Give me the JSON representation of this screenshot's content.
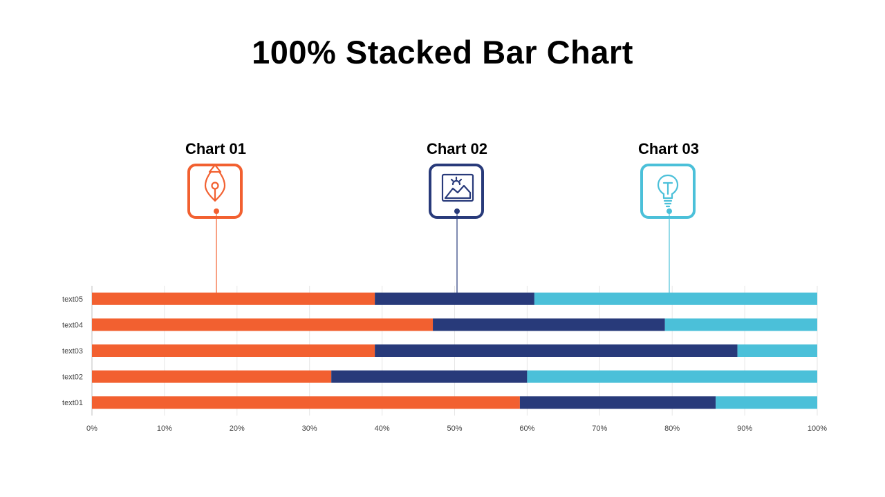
{
  "title": "100% Stacked Bar Chart",
  "callouts": [
    {
      "label": "Chart 01",
      "icon": "pen-nib-icon",
      "color": "#f26030"
    },
    {
      "label": "Chart 02",
      "icon": "landscape-image-icon",
      "color": "#283a7a"
    },
    {
      "label": "Chart 03",
      "icon": "lightbulb-icon",
      "color": "#4bc0d9"
    }
  ],
  "chart_data": {
    "type": "bar",
    "orientation": "horizontal",
    "stacked": "percent",
    "categories": [
      "text01",
      "text02",
      "text03",
      "text04",
      "text05"
    ],
    "series": [
      {
        "name": "Chart 01",
        "color": "#f26030",
        "values": [
          59,
          33,
          39,
          47,
          39
        ]
      },
      {
        "name": "Chart 02",
        "color": "#283a7a",
        "values": [
          27,
          27,
          50,
          32,
          22
        ]
      },
      {
        "name": "Chart 03",
        "color": "#4bc0d9",
        "values": [
          14,
          40,
          11,
          21,
          39
        ]
      }
    ],
    "xlim": [
      0,
      100
    ],
    "xticks": [
      "0%",
      "10%",
      "20%",
      "30%",
      "40%",
      "50%",
      "60%",
      "70%",
      "80%",
      "90%",
      "100%"
    ],
    "grid": true,
    "legend": "none"
  }
}
